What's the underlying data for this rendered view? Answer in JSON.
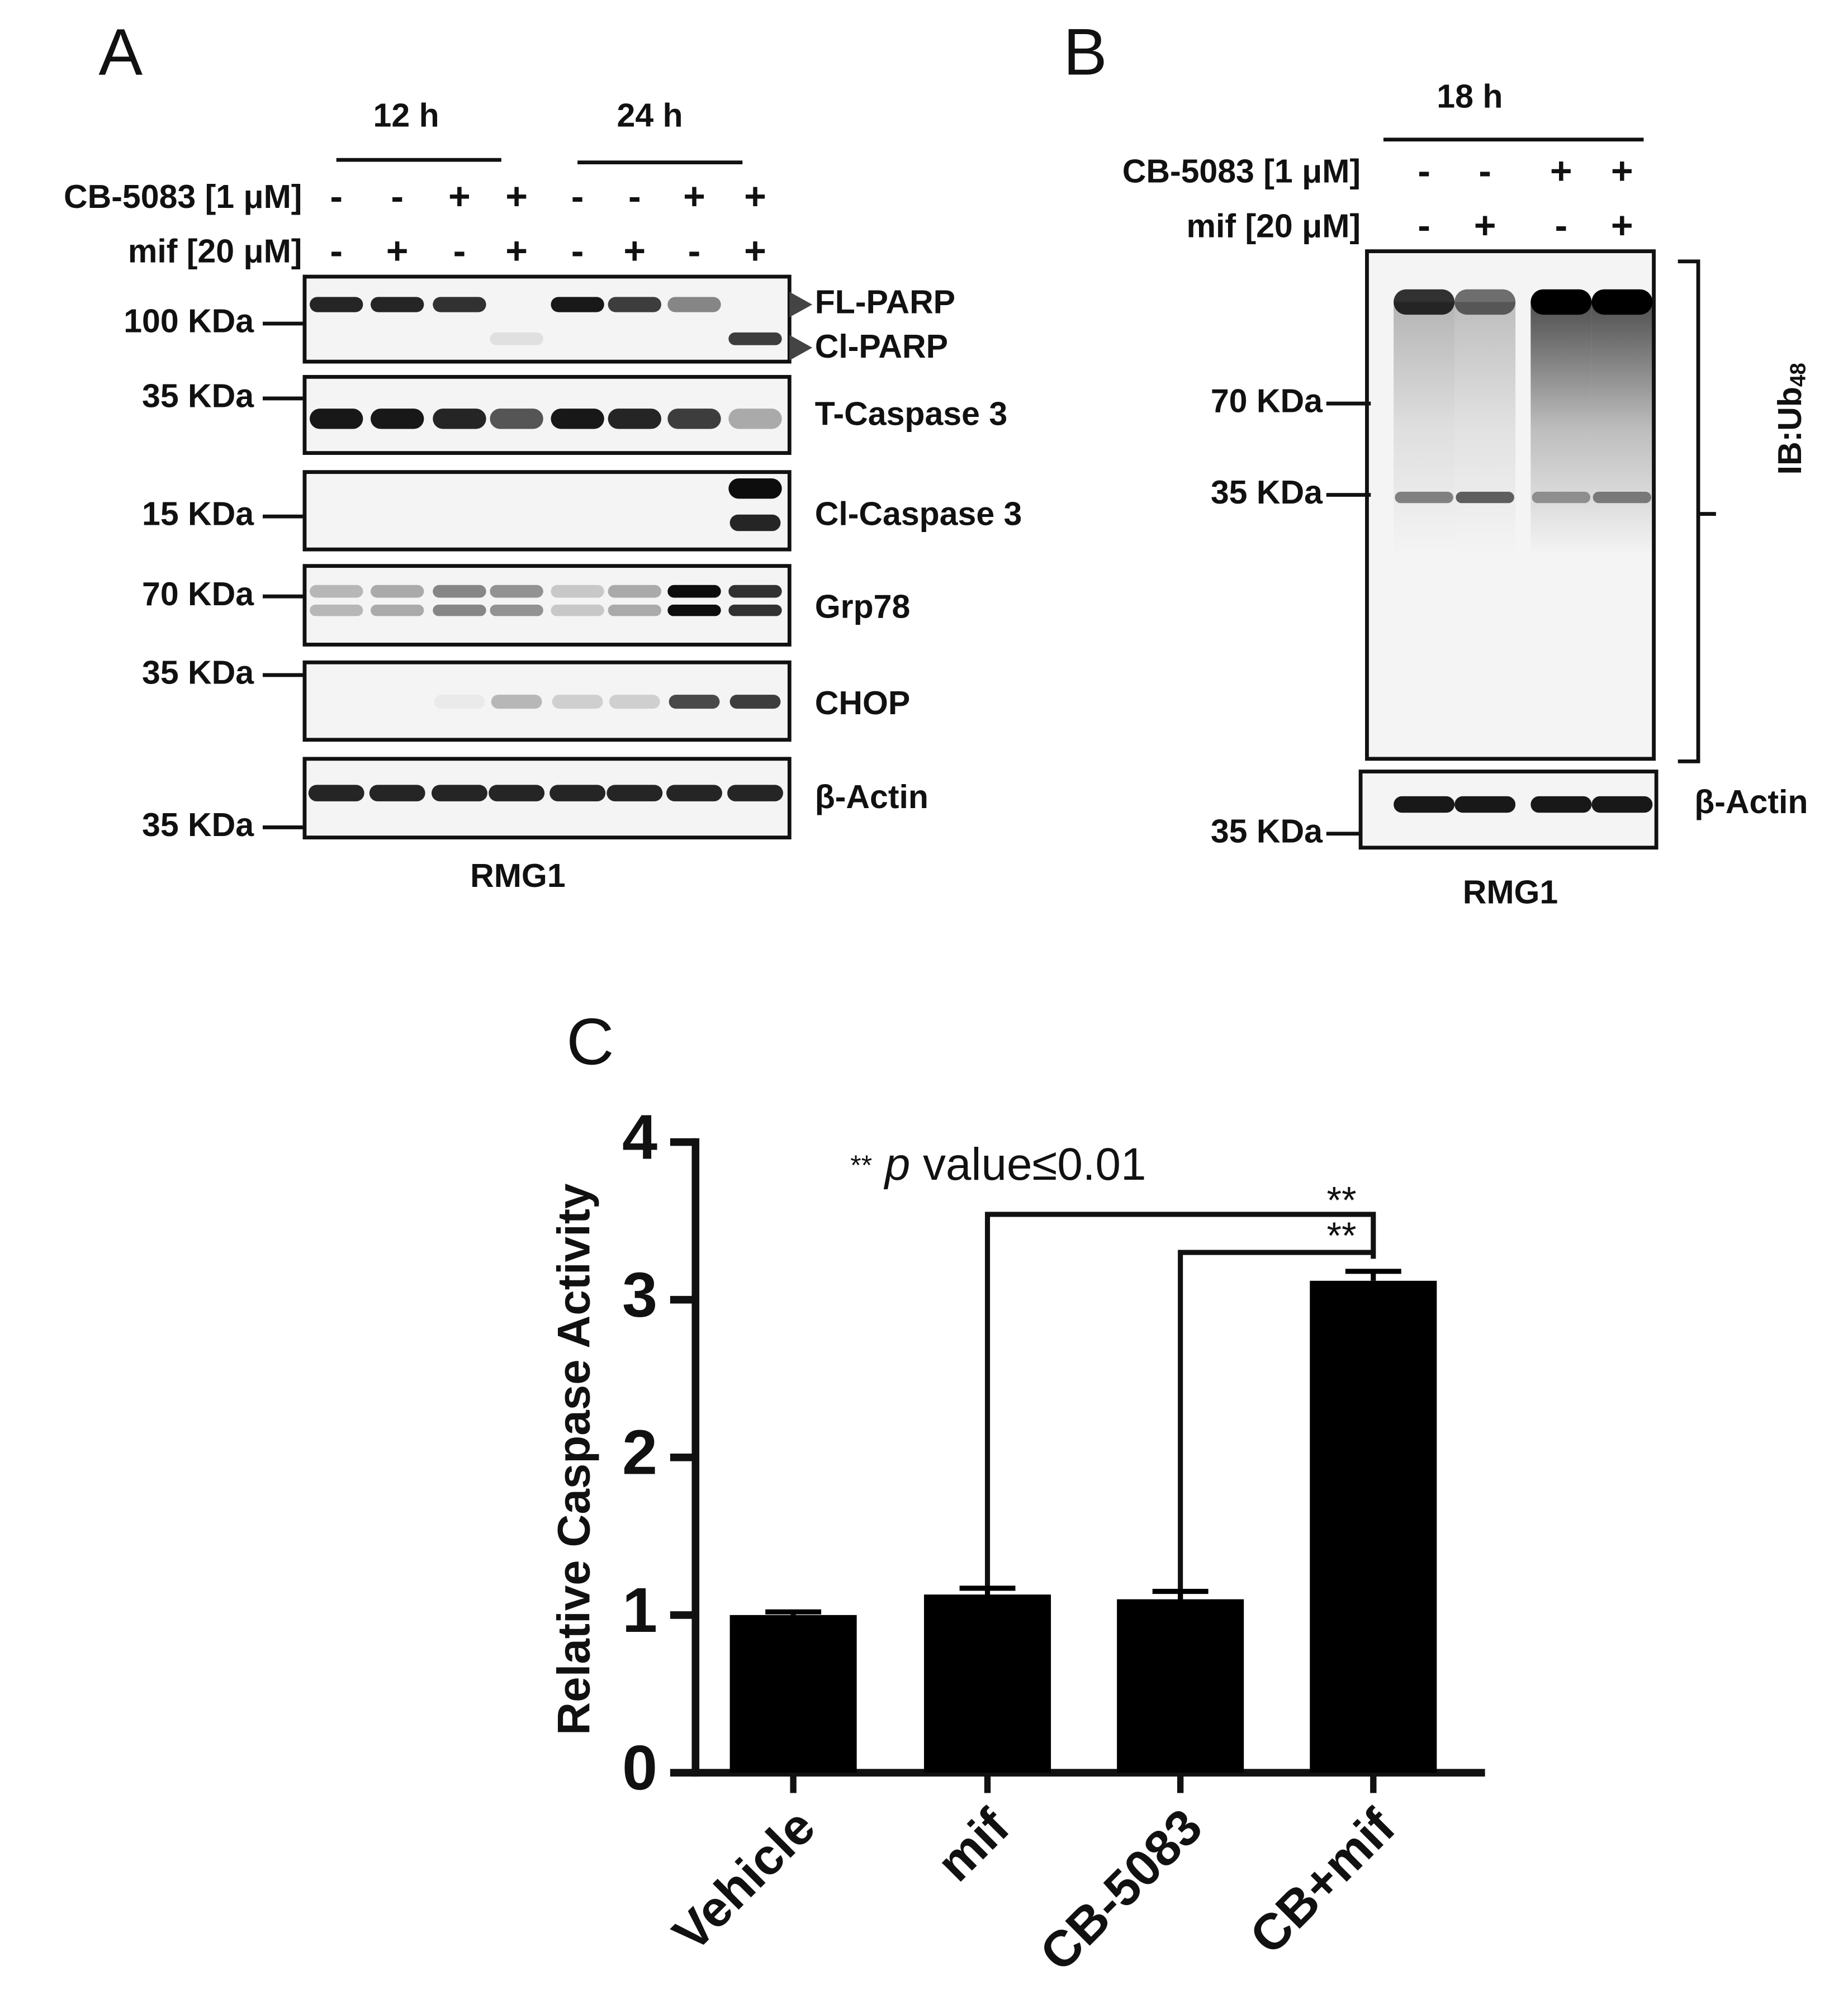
{
  "panel_a": {
    "label": "A",
    "time_labels": [
      "12 h",
      "24 h"
    ],
    "treatments": [
      {
        "name": "CB-5083 [1 μM]",
        "signs": [
          "-",
          "-",
          "+",
          "+",
          "-",
          "-",
          "+",
          "+"
        ]
      },
      {
        "name": "mif [20 μM]",
        "signs": [
          "-",
          "+",
          "-",
          "+",
          "-",
          "+",
          "-",
          "+"
        ]
      }
    ],
    "markers": [
      "100 KDa",
      "35 KDa",
      "15 KDa",
      "70 KDa",
      "35 KDa",
      "35 KDa"
    ],
    "proteins": [
      "FL-PARP",
      "Cl-PARP",
      "T-Caspase 3",
      "Cl-Caspase 3",
      "Grp78",
      "CHOP",
      "β-Actin"
    ],
    "cell_line": "RMG1"
  },
  "panel_b": {
    "label": "B",
    "time_label": "18 h",
    "treatments": [
      {
        "name": "CB-5083 [1 μM]",
        "signs": [
          "-",
          "-",
          "+",
          "+"
        ]
      },
      {
        "name": "mif [20 μM]",
        "signs": [
          "-",
          "+",
          "-",
          "+"
        ]
      }
    ],
    "markers": [
      "70 KDa",
      "35 KDa",
      "35 KDa"
    ],
    "antibody": "IB:Ub",
    "antibody_subscript": "48",
    "loading_control": "β-Actin",
    "cell_line": "RMG1"
  },
  "chart_data": {
    "type": "bar",
    "panel_label": "C",
    "ylabel": "Relative Caspase Activity",
    "categories": [
      "Vehicle",
      "mif",
      "CB-5083",
      "CB+mif"
    ],
    "values": [
      1.0,
      1.13,
      1.1,
      3.12
    ],
    "errors": [
      0.02,
      0.04,
      0.05,
      0.06
    ],
    "color": "#000000",
    "ylim": [
      0,
      4
    ],
    "yticks": [
      0,
      1,
      2,
      3,
      4
    ],
    "annotation": {
      "stars": "**",
      "p": "p",
      "text": "value≤0.01"
    },
    "significance": [
      "**",
      "**"
    ]
  }
}
